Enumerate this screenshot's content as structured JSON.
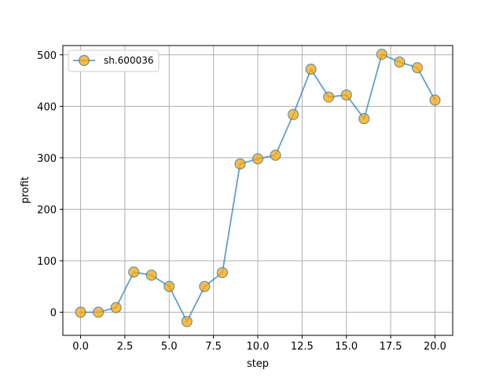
{
  "chart_data": {
    "type": "line",
    "xlabel": "step",
    "ylabel": "profit",
    "xlim": [
      -1,
      21
    ],
    "ylim": [
      -45,
      518
    ],
    "xticks": [
      0,
      2.5,
      5,
      7.5,
      10,
      12.5,
      15,
      17.5,
      20
    ],
    "xtick_labels": [
      "0.0",
      "2.5",
      "5.0",
      "7.5",
      "10.0",
      "12.5",
      "15.0",
      "17.5",
      "20.0"
    ],
    "yticks": [
      0,
      100,
      200,
      300,
      400,
      500
    ],
    "ytick_labels": [
      "0",
      "100",
      "200",
      "300",
      "400",
      "500"
    ],
    "grid": true,
    "legend_position": "top-left",
    "series": [
      {
        "name": "sh.600036",
        "line_color": "#1f77b4",
        "marker_color": "#ffa500",
        "x": [
          0,
          1,
          2,
          3,
          4,
          5,
          6,
          7,
          8,
          9,
          10,
          11,
          12,
          13,
          14,
          15,
          16,
          17,
          18,
          19,
          20
        ],
        "y": [
          0,
          0,
          9,
          78,
          72,
          50,
          -18,
          50,
          77,
          288,
          298,
          305,
          384,
          472,
          418,
          422,
          376,
          501,
          486,
          475,
          412
        ]
      }
    ]
  }
}
